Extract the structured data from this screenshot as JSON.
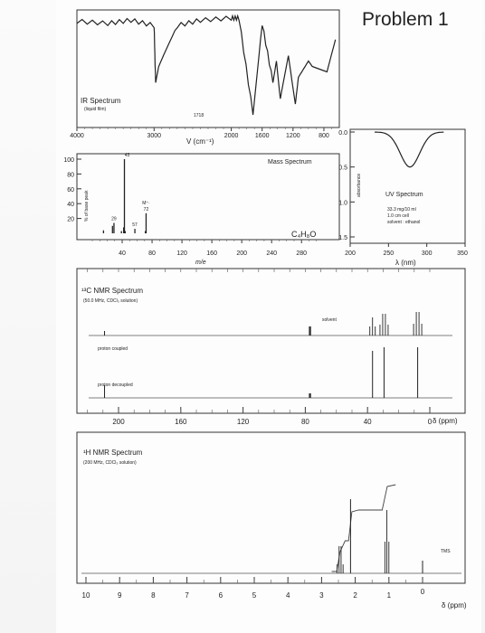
{
  "problem_title": "Problem 1",
  "ir": {
    "title": "IR Spectrum",
    "subtitle": "(liquid film)",
    "x_ticks": [
      "4000",
      "3000",
      "2000",
      "1600",
      "1200",
      "800"
    ],
    "xlabel": "V (cm⁻¹)",
    "annotation": "1718"
  },
  "mass": {
    "title": "Mass Spectrum",
    "ylabel": "% of base peak",
    "y_ticks": [
      "100",
      "80",
      "60",
      "40",
      "20"
    ],
    "x_ticks": [
      "40",
      "80",
      "120",
      "160",
      "200",
      "240",
      "280"
    ],
    "xlabel": "m/e",
    "formula": "C₄H₈O",
    "peak_labels": [
      {
        "text": "43",
        "mz": 43
      },
      {
        "text": "29",
        "mz": 29
      },
      {
        "text": "57",
        "mz": 57
      },
      {
        "text": "M⁺·",
        "mz": 72
      },
      {
        "text": "72",
        "mz": 72
      }
    ]
  },
  "uv": {
    "title": "UV Spectrum",
    "ylabel": "absorbance",
    "y_ticks": [
      "0.0",
      "0.5",
      "1.0",
      "1.5"
    ],
    "x_ticks": [
      "200",
      "250",
      "300",
      "350"
    ],
    "xlabel": "λ (nm)",
    "notes": [
      "33.3 mg/10 ml",
      "1.0 cm cell",
      "solvent : ethanol"
    ]
  },
  "c13": {
    "title": "¹³C NMR Spectrum",
    "subtitle": "(50.0 MHz, CDCl₃ solution)",
    "label_coupled": "proton coupled",
    "label_decoupled": "proton decoupled",
    "solvent_label": "solvent",
    "x_ticks": [
      "200",
      "160",
      "120",
      "80",
      "40",
      "0"
    ],
    "xlabel": "δ (ppm)"
  },
  "h1": {
    "title": "¹H NMR Spectrum",
    "subtitle": "(200 MHz, CDCl₃ solution)",
    "tms_label": "TMS",
    "x_ticks": [
      "10",
      "9",
      "8",
      "7",
      "6",
      "5",
      "4",
      "3",
      "2",
      "1",
      "0"
    ],
    "xlabel": "δ (ppm)"
  },
  "chart_data": [
    {
      "type": "line",
      "name": "IR Spectrum",
      "xlabel": "V (cm⁻¹)",
      "xlim": [
        4000,
        600
      ],
      "x": [
        4000,
        3600,
        3300,
        3000,
        2980,
        2940,
        2880,
        2700,
        2400,
        2000,
        1900,
        1718,
        1600,
        1460,
        1415,
        1365,
        1260,
        1170,
        1130,
        1000,
        950,
        760,
        650
      ],
      "transmittance": [
        0.92,
        0.9,
        0.93,
        0.88,
        0.35,
        0.5,
        0.6,
        0.88,
        0.93,
        0.95,
        0.95,
        0.05,
        0.9,
        0.35,
        0.55,
        0.2,
        0.6,
        0.15,
        0.4,
        0.55,
        0.5,
        0.45,
        0.75
      ]
    },
    {
      "type": "bar",
      "name": "Mass Spectrum",
      "xlabel": "m/e",
      "ylabel": "% of base peak",
      "xlim": [
        0,
        310
      ],
      "ylim": [
        0,
        100
      ],
      "x": [
        15,
        27,
        29,
        39,
        42,
        43,
        44,
        57,
        71,
        72
      ],
      "values": [
        4,
        10,
        14,
        3,
        8,
        100,
        3,
        6,
        3,
        27
      ]
    },
    {
      "type": "line",
      "name": "UV Spectrum",
      "xlabel": "λ (nm)",
      "ylabel": "absorbance",
      "xlim": [
        200,
        350
      ],
      "ylim": [
        0.0,
        1.5
      ],
      "peak_nm": 278,
      "peak_absorbance": 0.5
    },
    {
      "type": "scatter",
      "name": "¹³C NMR Spectrum",
      "xlabel": "δ (ppm)",
      "xlim": [
        220,
        0
      ],
      "peaks_ppm": [
        209,
        36.8,
        29.4,
        7.8
      ],
      "solvent_ppm": 77
    },
    {
      "type": "line",
      "name": "¹H NMR Spectrum",
      "xlabel": "δ (ppm)",
      "xlim": [
        10,
        0
      ],
      "signals": [
        {
          "ppm": 2.45,
          "integral": 2,
          "multiplicity": "quartet"
        },
        {
          "ppm": 2.14,
          "integral": 3,
          "multiplicity": "singlet"
        },
        {
          "ppm": 1.06,
          "integral": 3,
          "multiplicity": "triplet"
        },
        {
          "ppm": 0.0,
          "integral": 0,
          "multiplicity": "singlet"
        }
      ]
    }
  ]
}
